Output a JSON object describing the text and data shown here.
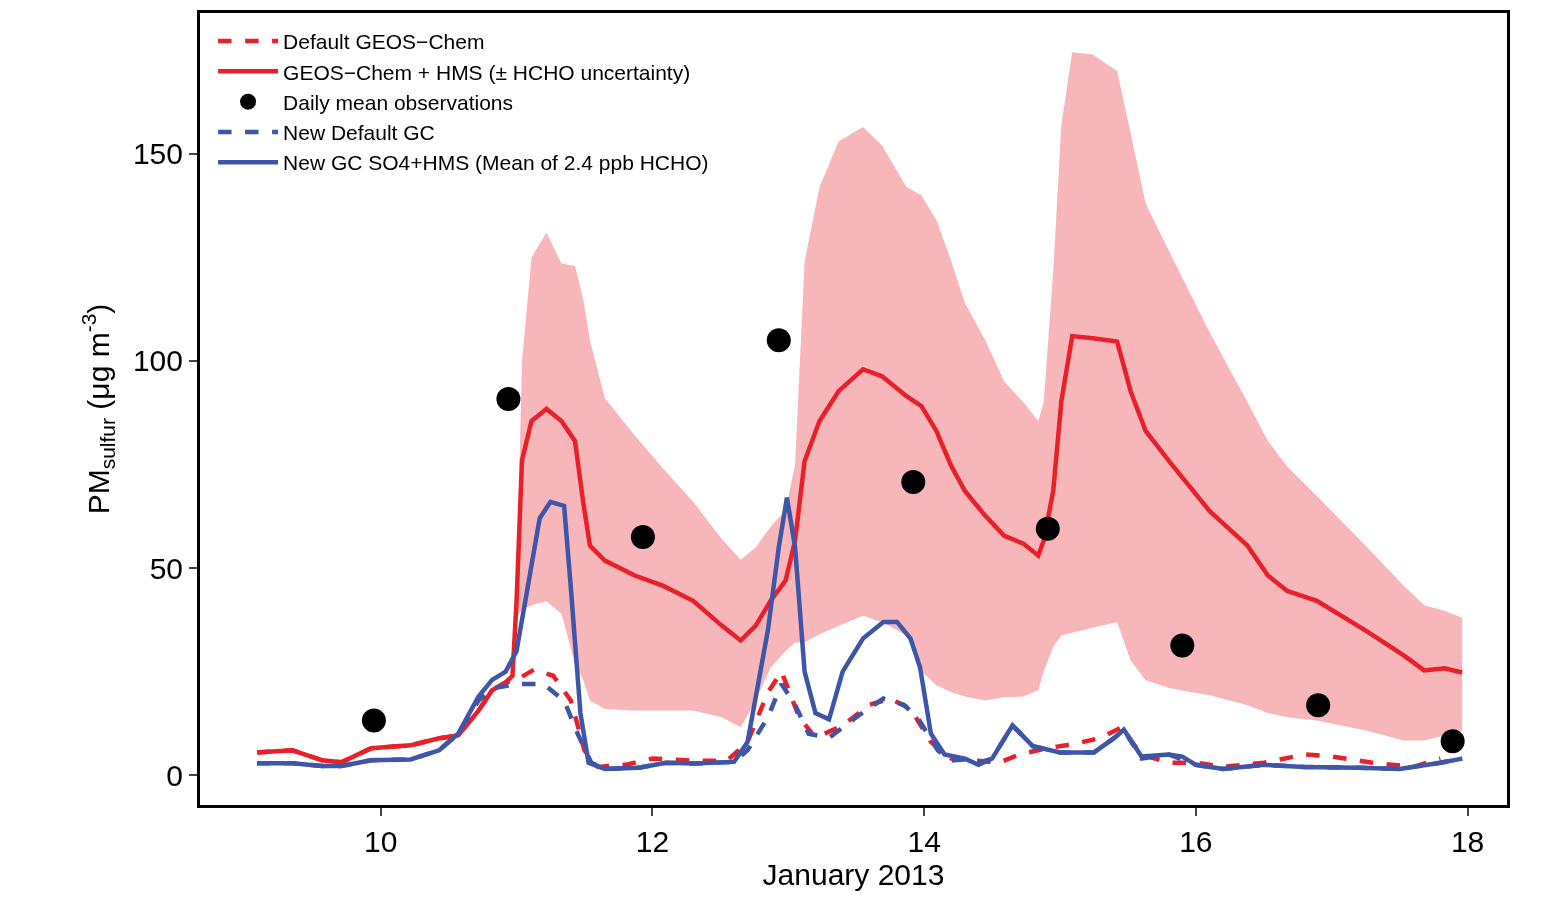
{
  "chart_data": {
    "type": "line",
    "xlabel": "January 2013",
    "ylabel": "PM$_{sulfur}$ (μg m$^{-3}$)",
    "xlim": [
      8.67,
      18.29
    ],
    "xticks": [
      10,
      12,
      14,
      16,
      18
    ],
    "ylim": [
      -7.2,
      184
    ],
    "yticks": [
      0,
      50,
      100,
      150
    ],
    "legend": "top left",
    "series": [
      {
        "name": "Default GEOS−Chem",
        "line_style": "dashed",
        "color": "#e8202a",
        "x": [
          9.09,
          9.35,
          9.57,
          9.71,
          9.93,
          10.22,
          10.43,
          10.57,
          10.72,
          10.82,
          10.92,
          11.0,
          11.13,
          11.27,
          11.4,
          11.5,
          11.6,
          11.8,
          12.0,
          12.3,
          12.55,
          12.7,
          12.85,
          12.95,
          13.08,
          13.2,
          13.4,
          13.6,
          13.75,
          13.9,
          14.05,
          14.2,
          14.4,
          14.55,
          14.7,
          14.9,
          15.1,
          15.3,
          15.45,
          15.6,
          15.8,
          16.0,
          16.2,
          16.5,
          16.8,
          17.0,
          17.3,
          17.6,
          17.8
        ],
        "values": [
          5.5,
          6,
          3.6,
          3.1,
          6.5,
          7.2,
          8.9,
          9.6,
          15.6,
          20.5,
          22.4,
          23,
          25.5,
          24,
          18,
          6,
          2,
          2.5,
          4,
          3.5,
          3.5,
          8,
          20,
          25,
          14,
          9,
          12,
          17,
          18.5,
          16,
          8,
          4,
          3.5,
          3,
          5,
          6.5,
          7.5,
          9,
          11.5,
          5,
          3,
          3,
          2,
          3,
          5,
          4.5,
          3,
          2,
          4
        ]
      },
      {
        "name": "GEOS−Chem + HMS (± HCHO uncertainty)",
        "line_style": "solid",
        "color": "#e8202a",
        "x": [
          9.09,
          9.35,
          9.57,
          9.71,
          9.93,
          10.22,
          10.43,
          10.57,
          10.72,
          10.82,
          10.92,
          10.97,
          11.0,
          11.04,
          11.11,
          11.22,
          11.33,
          11.43,
          11.49,
          11.54,
          11.65,
          11.87,
          12.08,
          12.3,
          12.51,
          12.65,
          12.76,
          12.87,
          12.98,
          13.05,
          13.12,
          13.23,
          13.37,
          13.55,
          13.69,
          13.87,
          13.98,
          14.09,
          14.2,
          14.3,
          14.45,
          14.59,
          14.73,
          14.84,
          14.88,
          14.95,
          15.01,
          15.09,
          15.24,
          15.42,
          15.52,
          15.63,
          15.81,
          16.1,
          16.38,
          16.53,
          16.67,
          16.89,
          17.25,
          17.53,
          17.68,
          17.83,
          17.96
        ],
        "values": [
          5.5,
          6,
          3.6,
          3.1,
          6.5,
          7.2,
          8.9,
          9.6,
          15.6,
          20.5,
          22.4,
          24,
          42,
          76,
          85.5,
          88.4,
          85.5,
          80.7,
          66,
          55.4,
          51.8,
          48.2,
          45.7,
          42.1,
          36.1,
          32.5,
          36.1,
          42.1,
          47,
          56.6,
          75.8,
          85.5,
          92.7,
          98,
          96.3,
          91.5,
          89.1,
          83.1,
          74.6,
          68.6,
          62.6,
          57.8,
          55.9,
          53,
          56.6,
          68.6,
          90.3,
          106,
          105.5,
          104.7,
          92.7,
          83.1,
          75.5,
          63.8,
          55.4,
          48.2,
          44.5,
          42.1,
          34.9,
          28.9,
          25.3,
          25.8,
          24.8
        ],
        "lower": [
          5.5,
          6,
          3.6,
          3.1,
          6.5,
          7.2,
          8.9,
          9.6,
          15.6,
          20.5,
          22.4,
          24,
          38,
          40,
          41,
          42,
          39,
          27,
          23,
          18,
          16,
          15.6,
          15.6,
          15.6,
          14,
          11.6,
          18,
          26,
          30,
          32,
          32,
          34,
          36,
          38.5,
          37,
          33.7,
          25,
          21.7,
          20,
          19,
          18,
          18.8,
          19,
          20.5,
          25,
          31,
          33.7,
          34.4,
          35.6,
          37,
          27.7,
          22.9,
          21,
          19.3,
          16.9,
          15,
          14,
          13.2,
          10.8,
          8.4,
          8.4,
          9.6,
          10.8
        ],
        "upper": [
          5.5,
          6,
          3.6,
          3.1,
          6.5,
          7.2,
          8.9,
          9.6,
          15.6,
          20.5,
          22.4,
          24,
          45,
          100,
          125,
          131,
          123.5,
          123,
          115,
          105,
          91,
          82,
          74,
          66,
          57,
          52,
          55,
          60,
          64,
          75,
          124,
          142,
          153,
          156.5,
          152,
          142,
          140,
          134,
          124,
          114,
          105,
          95,
          90,
          85.5,
          90,
          121.6,
          157,
          174.5,
          174,
          170,
          155,
          138,
          126,
          107,
          90,
          80.7,
          74.6,
          67.4,
          55.4,
          45.7,
          41,
          39.7,
          38
        ]
      },
      {
        "name": "Daily mean observations",
        "type": "scatter",
        "marker": "circle",
        "color": "#000000",
        "x": [
          9.95,
          10.94,
          11.93,
          12.93,
          13.92,
          14.91,
          15.9,
          16.9,
          17.89
        ],
        "values": [
          13.2,
          90.8,
          57.5,
          105,
          70.8,
          59.5,
          31.3,
          16.9,
          8.2
        ]
      },
      {
        "name": "New Default GC",
        "line_style": "dashed",
        "color": "#3f56a8",
        "x": [
          9.09,
          9.35,
          9.57,
          9.71,
          9.93,
          10.22,
          10.43,
          10.57,
          10.72,
          10.82,
          10.92,
          11.0,
          11.2,
          11.35,
          11.45,
          11.55,
          11.65,
          11.9,
          12.1,
          12.3,
          12.6,
          12.7,
          12.85,
          12.95,
          13.05,
          13.15,
          13.3,
          13.5,
          13.7,
          13.85,
          13.95,
          14.1,
          14.2,
          14.35,
          14.4,
          14.5,
          14.65,
          14.8,
          15.0,
          15.25,
          15.4,
          15.47,
          15.6,
          15.8,
          16.0,
          16.2,
          16.5,
          16.8,
          17.2,
          17.5,
          17.8,
          17.96
        ],
        "values": [
          2.9,
          2.9,
          2.2,
          2.2,
          3.6,
          3.8,
          6,
          10,
          18,
          21,
          21.5,
          22,
          22,
          18,
          10,
          3,
          1.5,
          1.8,
          3,
          2.8,
          3.2,
          6,
          14,
          22,
          17,
          10,
          9,
          14,
          18.5,
          17,
          14,
          6,
          3.5,
          4,
          3,
          4,
          12,
          7,
          5.5,
          5.5,
          9,
          11,
          4,
          5,
          2.5,
          1.5,
          2.5,
          2,
          1.8,
          1.5,
          3,
          4
        ]
      },
      {
        "name": "New GC SO4+HMS (Mean of 2.4 ppb HCHO)",
        "line_style": "solid",
        "color": "#3f56a8",
        "x": [
          9.09,
          9.35,
          9.57,
          9.71,
          9.93,
          10.22,
          10.43,
          10.57,
          10.72,
          10.82,
          10.92,
          11.0,
          11.08,
          11.17,
          11.25,
          11.35,
          11.4,
          11.47,
          11.53,
          11.65,
          11.9,
          12.1,
          12.3,
          12.6,
          12.7,
          12.85,
          12.93,
          12.99,
          13.05,
          13.12,
          13.2,
          13.3,
          13.4,
          13.55,
          13.7,
          13.8,
          13.9,
          13.97,
          14.05,
          14.15,
          14.3,
          14.4,
          14.5,
          14.65,
          14.8,
          15.0,
          15.25,
          15.4,
          15.47,
          15.6,
          15.8,
          15.9,
          16.0,
          16.2,
          16.5,
          16.8,
          17.2,
          17.5,
          17.8,
          17.96
        ],
        "values": [
          2.9,
          2.9,
          2.2,
          2.2,
          3.6,
          3.8,
          6,
          10,
          19,
          23,
          25,
          30,
          45,
          62,
          66,
          65,
          45,
          15,
          3,
          1.5,
          1.8,
          3,
          2.8,
          3.2,
          8,
          35,
          55,
          67,
          55,
          25,
          15,
          13.5,
          25,
          33,
          37,
          37,
          33,
          26,
          10,
          5,
          4,
          2.5,
          4,
          12,
          7,
          5.5,
          5.5,
          9,
          11,
          4.5,
          5,
          4.5,
          2.5,
          1.5,
          2.5,
          2,
          1.8,
          1.5,
          3,
          4
        ]
      }
    ]
  }
}
